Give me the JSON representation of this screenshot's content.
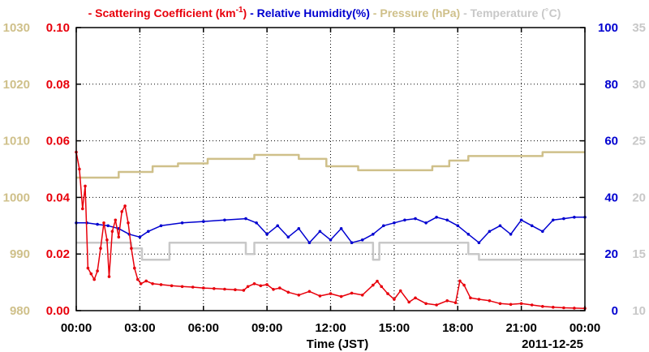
{
  "chart_data": {
    "type": "line",
    "legend": [
      {
        "id": "scat",
        "text": "Scattering Coefficient (km",
        "sup": "-1",
        "tail": ")",
        "color": "#e8000b"
      },
      {
        "id": "rh",
        "text": "Relative Humidity(%)",
        "color": "#0000d0"
      },
      {
        "id": "pres",
        "text": "Pressure (hPa)",
        "color": "#cfc08a"
      },
      {
        "id": "temp",
        "text": "Temperature (˚C)",
        "color": "#c8c8c8"
      }
    ],
    "xlabel": "Time (JST)",
    "date_label": "2011-12-25",
    "x_ticks": [
      "00:00",
      "03:00",
      "06:00",
      "09:00",
      "12:00",
      "15:00",
      "18:00",
      "21:00",
      "00:00"
    ],
    "x_range_hours": [
      0,
      24
    ],
    "axes": {
      "pressure": {
        "range": [
          980,
          1030
        ],
        "ticks": [
          "980",
          "990",
          "1000",
          "1010",
          "1020",
          "1030"
        ],
        "color": "#cfc08a"
      },
      "scattering": {
        "range": [
          0,
          0.1
        ],
        "ticks": [
          "0.00",
          "0.02",
          "0.04",
          "0.06",
          "0.08",
          "0.10"
        ],
        "color": "#e8000b"
      },
      "humidity": {
        "range": [
          0,
          100
        ],
        "ticks": [
          "0",
          "20",
          "40",
          "60",
          "80",
          "100"
        ],
        "color": "#0000d0"
      },
      "temperature": {
        "range": [
          10,
          35
        ],
        "ticks": [
          "10",
          "15",
          "20",
          "25",
          "30",
          "35"
        ],
        "color": "#c8c8c8"
      }
    },
    "grid": true,
    "series": [
      {
        "name": "Scattering Coefficient",
        "axis": "scattering",
        "color": "#e8000b",
        "markers": true,
        "points": [
          [
            0.0,
            0.056
          ],
          [
            0.15,
            0.05
          ],
          [
            0.3,
            0.036
          ],
          [
            0.42,
            0.044
          ],
          [
            0.55,
            0.015
          ],
          [
            0.7,
            0.013
          ],
          [
            0.85,
            0.011
          ],
          [
            1.0,
            0.014
          ],
          [
            1.15,
            0.022
          ],
          [
            1.3,
            0.031
          ],
          [
            1.45,
            0.025
          ],
          [
            1.55,
            0.012
          ],
          [
            1.7,
            0.028
          ],
          [
            1.85,
            0.032
          ],
          [
            2.0,
            0.026
          ],
          [
            2.15,
            0.035
          ],
          [
            2.3,
            0.037
          ],
          [
            2.45,
            0.031
          ],
          [
            2.6,
            0.022
          ],
          [
            2.75,
            0.015
          ],
          [
            2.9,
            0.011
          ],
          [
            3.05,
            0.0095
          ],
          [
            3.3,
            0.0105
          ],
          [
            3.6,
            0.0095
          ],
          [
            4.0,
            0.0092
          ],
          [
            4.5,
            0.0088
          ],
          [
            5.0,
            0.0085
          ],
          [
            5.5,
            0.0083
          ],
          [
            6.0,
            0.008
          ],
          [
            6.5,
            0.0078
          ],
          [
            7.0,
            0.0076
          ],
          [
            7.5,
            0.0074
          ],
          [
            7.9,
            0.0072
          ],
          [
            8.1,
            0.0085
          ],
          [
            8.4,
            0.0095
          ],
          [
            8.7,
            0.0088
          ],
          [
            9.0,
            0.0092
          ],
          [
            9.3,
            0.0075
          ],
          [
            9.6,
            0.008
          ],
          [
            10.0,
            0.0065
          ],
          [
            10.5,
            0.0055
          ],
          [
            11.0,
            0.0068
          ],
          [
            11.5,
            0.0052
          ],
          [
            12.0,
            0.006
          ],
          [
            12.5,
            0.005
          ],
          [
            13.0,
            0.0062
          ],
          [
            13.5,
            0.0055
          ],
          [
            14.0,
            0.009
          ],
          [
            14.2,
            0.0104
          ],
          [
            14.4,
            0.0085
          ],
          [
            14.7,
            0.006
          ],
          [
            15.0,
            0.004
          ],
          [
            15.3,
            0.007
          ],
          [
            15.7,
            0.003
          ],
          [
            16.0,
            0.0045
          ],
          [
            16.5,
            0.0025
          ],
          [
            17.0,
            0.002
          ],
          [
            17.5,
            0.0035
          ],
          [
            17.9,
            0.0028
          ],
          [
            18.1,
            0.0105
          ],
          [
            18.3,
            0.009
          ],
          [
            18.6,
            0.0045
          ],
          [
            19.0,
            0.004
          ],
          [
            19.5,
            0.0035
          ],
          [
            20.0,
            0.0025
          ],
          [
            20.5,
            0.0022
          ],
          [
            21.0,
            0.0025
          ],
          [
            21.5,
            0.002
          ],
          [
            22.0,
            0.0015
          ],
          [
            22.5,
            0.0012
          ],
          [
            23.0,
            0.001
          ],
          [
            23.5,
            0.0009
          ],
          [
            24.0,
            0.0008
          ]
        ]
      },
      {
        "name": "Relative Humidity",
        "axis": "humidity",
        "color": "#0000d0",
        "markers": true,
        "points": [
          [
            0.0,
            31
          ],
          [
            0.5,
            31
          ],
          [
            1.0,
            30.5
          ],
          [
            1.5,
            30
          ],
          [
            2.0,
            29
          ],
          [
            2.5,
            27
          ],
          [
            3.0,
            26
          ],
          [
            3.4,
            28
          ],
          [
            4.0,
            30
          ],
          [
            5.0,
            31
          ],
          [
            6.0,
            31.5
          ],
          [
            7.0,
            32
          ],
          [
            8.0,
            32.5
          ],
          [
            8.5,
            31
          ],
          [
            9.0,
            27
          ],
          [
            9.5,
            30
          ],
          [
            10.0,
            26
          ],
          [
            10.5,
            29
          ],
          [
            11.0,
            24
          ],
          [
            11.5,
            28
          ],
          [
            12.0,
            25
          ],
          [
            12.5,
            29
          ],
          [
            13.0,
            24
          ],
          [
            13.5,
            25
          ],
          [
            14.0,
            27
          ],
          [
            14.5,
            30
          ],
          [
            15.0,
            31
          ],
          [
            15.5,
            32
          ],
          [
            16.0,
            32.5
          ],
          [
            16.5,
            31
          ],
          [
            17.0,
            33
          ],
          [
            17.5,
            32
          ],
          [
            18.0,
            30
          ],
          [
            18.5,
            27
          ],
          [
            19.0,
            24
          ],
          [
            19.5,
            28
          ],
          [
            20.0,
            30
          ],
          [
            20.5,
            27
          ],
          [
            21.0,
            32
          ],
          [
            21.5,
            30
          ],
          [
            22.0,
            28
          ],
          [
            22.5,
            32
          ],
          [
            23.0,
            32.5
          ],
          [
            23.5,
            33
          ],
          [
            24.0,
            33
          ]
        ]
      },
      {
        "name": "Pressure",
        "axis": "pressure",
        "color": "#cfc08a",
        "markers": false,
        "points": [
          [
            0.0,
            1003.5
          ],
          [
            2.0,
            1003.5
          ],
          [
            2.0,
            1004.5
          ],
          [
            3.6,
            1004.5
          ],
          [
            3.6,
            1005.5
          ],
          [
            4.8,
            1005.5
          ],
          [
            4.8,
            1006
          ],
          [
            6.2,
            1006
          ],
          [
            6.2,
            1006.8
          ],
          [
            8.4,
            1006.8
          ],
          [
            8.4,
            1007.5
          ],
          [
            10.5,
            1007.5
          ],
          [
            10.5,
            1006.8
          ],
          [
            11.8,
            1006.8
          ],
          [
            11.8,
            1005.5
          ],
          [
            13.3,
            1005.5
          ],
          [
            13.3,
            1004.8
          ],
          [
            16.8,
            1004.8
          ],
          [
            16.8,
            1005.5
          ],
          [
            17.6,
            1005.5
          ],
          [
            17.6,
            1006.5
          ],
          [
            18.5,
            1006.5
          ],
          [
            18.5,
            1007.3
          ],
          [
            22.0,
            1007.3
          ],
          [
            22.0,
            1008
          ],
          [
            24.0,
            1008
          ]
        ]
      },
      {
        "name": "Temperature",
        "axis": "temperature",
        "color": "#c8c8c8",
        "markers": false,
        "points": [
          [
            0.0,
            16
          ],
          [
            2.6,
            16
          ],
          [
            2.6,
            15.5
          ],
          [
            3.1,
            15.5
          ],
          [
            3.1,
            14.5
          ],
          [
            4.4,
            14.5
          ],
          [
            4.4,
            16
          ],
          [
            8.0,
            16
          ],
          [
            8.0,
            15
          ],
          [
            8.4,
            15
          ],
          [
            8.4,
            16
          ],
          [
            14.0,
            16
          ],
          [
            14.0,
            14.5
          ],
          [
            14.3,
            14.5
          ],
          [
            14.3,
            16
          ],
          [
            18.5,
            16
          ],
          [
            18.5,
            15
          ],
          [
            19.0,
            15
          ],
          [
            19.0,
            14.5
          ],
          [
            24.0,
            14.5
          ]
        ]
      }
    ]
  }
}
